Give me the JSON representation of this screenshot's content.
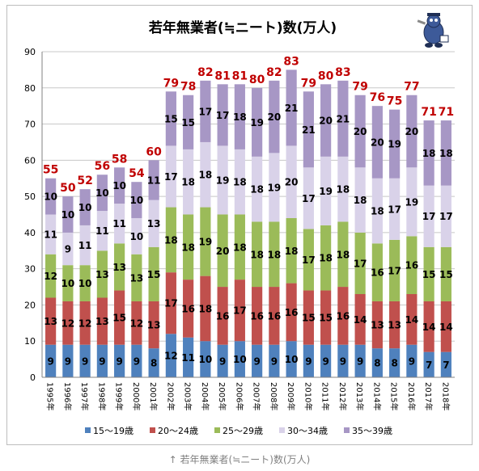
{
  "chart_data": {
    "type": "bar",
    "stacked": true,
    "title": "若年無業者(≒ニート)数(万人)",
    "categories": [
      "1995年",
      "1996年",
      "1997年",
      "1998年",
      "1999年",
      "2000年",
      "2001年",
      "2002年",
      "2003年",
      "2004年",
      "2005年",
      "2006年",
      "2007年",
      "2008年",
      "2009年",
      "2010年",
      "2011年",
      "2012年",
      "2013年",
      "2014年",
      "2015年",
      "2016年",
      "2017年",
      "2018年"
    ],
    "series": [
      {
        "name": "15〜19歳",
        "color": "#4f81bd",
        "values": [
          9,
          9,
          9,
          9,
          9,
          9,
          8,
          12,
          11,
          10,
          9,
          10,
          9,
          9,
          10,
          9,
          9,
          9,
          9,
          8,
          8,
          9,
          7,
          7
        ]
      },
      {
        "name": "20〜24歳",
        "color": "#c0504d",
        "values": [
          13,
          12,
          12,
          13,
          15,
          12,
          13,
          17,
          16,
          18,
          16,
          17,
          16,
          16,
          16,
          15,
          15,
          16,
          14,
          13,
          13,
          14,
          14,
          14
        ]
      },
      {
        "name": "25〜29歳",
        "color": "#9bbb59",
        "values": [
          12,
          10,
          10,
          13,
          13,
          13,
          15,
          18,
          18,
          19,
          20,
          18,
          18,
          18,
          18,
          17,
          18,
          18,
          17,
          16,
          17,
          16,
          15,
          15
        ]
      },
      {
        "name": "30〜34歳",
        "color": "#d9d2e9",
        "values": [
          11,
          9,
          11,
          11,
          11,
          10,
          13,
          17,
          18,
          18,
          19,
          18,
          18,
          19,
          20,
          17,
          19,
          18,
          18,
          18,
          17,
          19,
          17,
          17
        ]
      },
      {
        "name": "35〜39歳",
        "color": "#a797c5",
        "values": [
          10,
          10,
          10,
          10,
          10,
          10,
          11,
          15,
          15,
          17,
          17,
          18,
          19,
          20,
          21,
          21,
          20,
          21,
          20,
          20,
          19,
          20,
          18,
          18
        ]
      }
    ],
    "totals": [
      55,
      50,
      52,
      56,
      58,
      54,
      60,
      79,
      78,
      82,
      81,
      81,
      80,
      82,
      83,
      79,
      80,
      83,
      79,
      76,
      75,
      77,
      71,
      71
    ],
    "totals_color": "#c00000",
    "ylim": [
      0,
      90
    ],
    "yticks": [
      0,
      10,
      20,
      30,
      40,
      50,
      60,
      70,
      80,
      90
    ],
    "grid": true,
    "legend_position": "bottom"
  },
  "caption": "↑ 若年無業者(≒ニート)数(万人)"
}
